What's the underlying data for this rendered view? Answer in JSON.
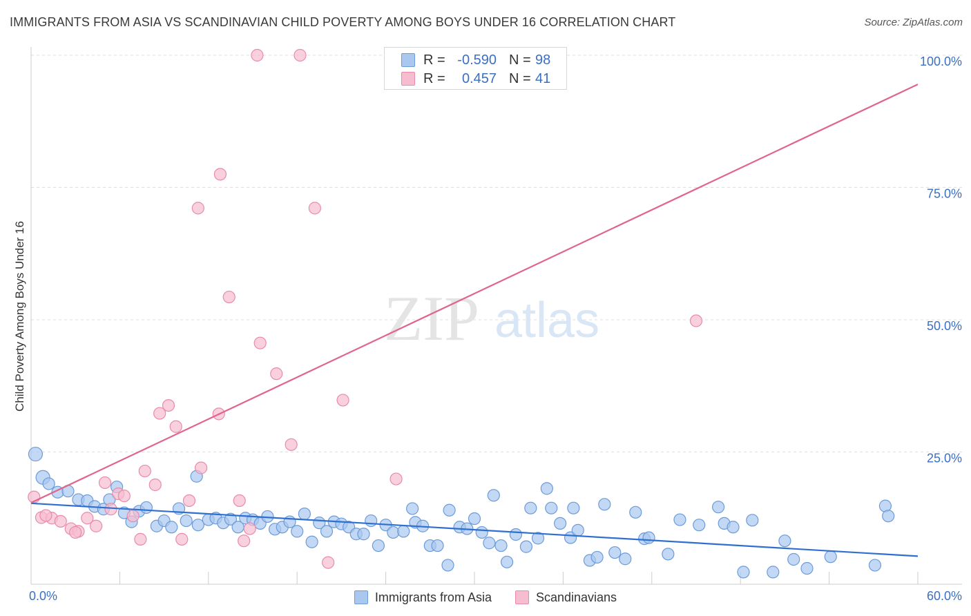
{
  "header": {
    "title": "IMMIGRANTS FROM ASIA VS SCANDINAVIAN CHILD POVERTY AMONG BOYS UNDER 16 CORRELATION CHART",
    "source": "Source: ZipAtlas.com"
  },
  "watermark": {
    "part1": "ZIP",
    "part2": "atlas"
  },
  "colors": {
    "asia_fill": "#aac8ef",
    "asia_stroke": "#6b9bd8",
    "asia_line": "#2f6fcf",
    "scand_fill": "#f6bcd0",
    "scand_stroke": "#e98aa9",
    "scand_line": "#e0648d",
    "axis_label": "#3a6fc4",
    "grid": "#dddddd"
  },
  "legend_top": {
    "asia": {
      "r_label": "R =",
      "r_value": "-0.590",
      "n_label": "N =",
      "n_value": "98"
    },
    "scand": {
      "r_label": "R =",
      "r_value": "0.457",
      "n_label": "N =",
      "n_value": "41"
    }
  },
  "legend_bottom": {
    "asia": "Immigrants from Asia",
    "scand": "Scandinavians"
  },
  "chart_data": {
    "type": "scatter",
    "title": "IMMIGRANTS FROM ASIA VS SCANDINAVIAN CHILD POVERTY AMONG BOYS UNDER 16 CORRELATION CHART",
    "xlabel": "",
    "ylabel": "Child Poverty Among Boys Under 16",
    "xlim": [
      0,
      60
    ],
    "ylim": [
      0,
      100
    ],
    "x_tick_labels": [
      "0.0%",
      "60.0%"
    ],
    "y_ticks": [
      25,
      50,
      75,
      100
    ],
    "y_tick_labels": [
      "25.0%",
      "50.0%",
      "75.0%",
      "100.0%"
    ],
    "grid": true,
    "legend_placement": "top-center",
    "series": [
      {
        "name": "Immigrants from Asia",
        "trend": {
          "x": [
            0,
            60
          ],
          "y": [
            15.3,
            5.3
          ]
        },
        "points": [
          [
            0.3,
            24.6
          ],
          [
            0.8,
            20.2
          ],
          [
            1.2,
            19.0
          ],
          [
            1.8,
            17.4
          ],
          [
            2.5,
            17.6
          ],
          [
            3.2,
            16.0
          ],
          [
            3.8,
            15.8
          ],
          [
            4.3,
            14.7
          ],
          [
            4.9,
            14.2
          ],
          [
            5.3,
            16.0
          ],
          [
            5.8,
            18.4
          ],
          [
            6.3,
            13.5
          ],
          [
            6.8,
            11.8
          ],
          [
            7.3,
            13.8
          ],
          [
            7.8,
            14.5
          ],
          [
            8.5,
            11.0
          ],
          [
            9.0,
            12.0
          ],
          [
            9.5,
            10.8
          ],
          [
            10.0,
            14.3
          ],
          [
            10.5,
            12.0
          ],
          [
            11.2,
            20.4
          ],
          [
            11.3,
            11.2
          ],
          [
            12.0,
            12.2
          ],
          [
            12.5,
            12.5
          ],
          [
            13.0,
            11.6
          ],
          [
            13.5,
            12.3
          ],
          [
            14.0,
            10.8
          ],
          [
            14.5,
            12.5
          ],
          [
            15.0,
            12.2
          ],
          [
            15.5,
            11.5
          ],
          [
            16.0,
            12.8
          ],
          [
            16.5,
            10.4
          ],
          [
            17.0,
            10.8
          ],
          [
            17.5,
            11.8
          ],
          [
            18.0,
            10.0
          ],
          [
            18.5,
            13.3
          ],
          [
            19.0,
            8.0
          ],
          [
            19.5,
            11.6
          ],
          [
            20.0,
            10.0
          ],
          [
            20.5,
            11.8
          ],
          [
            21.0,
            11.4
          ],
          [
            21.5,
            10.8
          ],
          [
            22.0,
            9.5
          ],
          [
            22.5,
            9.5
          ],
          [
            23.0,
            12.0
          ],
          [
            23.5,
            7.3
          ],
          [
            24.0,
            11.2
          ],
          [
            24.5,
            9.8
          ],
          [
            25.2,
            10.0
          ],
          [
            25.8,
            14.3
          ],
          [
            26.0,
            11.7
          ],
          [
            26.5,
            11.0
          ],
          [
            27.0,
            7.3
          ],
          [
            27.5,
            7.3
          ],
          [
            28.2,
            3.6
          ],
          [
            28.3,
            14.0
          ],
          [
            29.0,
            10.8
          ],
          [
            29.5,
            10.5
          ],
          [
            30.0,
            12.4
          ],
          [
            30.5,
            9.8
          ],
          [
            31.0,
            7.8
          ],
          [
            31.3,
            16.8
          ],
          [
            31.8,
            7.3
          ],
          [
            32.2,
            4.2
          ],
          [
            32.8,
            9.4
          ],
          [
            33.5,
            7.1
          ],
          [
            33.8,
            14.4
          ],
          [
            34.3,
            8.7
          ],
          [
            34.9,
            18.1
          ],
          [
            35.2,
            14.4
          ],
          [
            35.8,
            11.5
          ],
          [
            36.5,
            8.8
          ],
          [
            36.7,
            14.4
          ],
          [
            37.0,
            10.2
          ],
          [
            37.8,
            4.5
          ],
          [
            38.3,
            5.1
          ],
          [
            38.8,
            15.1
          ],
          [
            39.5,
            6.0
          ],
          [
            40.2,
            4.8
          ],
          [
            40.9,
            13.6
          ],
          [
            41.5,
            8.6
          ],
          [
            41.8,
            8.8
          ],
          [
            43.1,
            5.7
          ],
          [
            43.9,
            12.2
          ],
          [
            45.2,
            11.2
          ],
          [
            46.5,
            14.6
          ],
          [
            46.9,
            11.5
          ],
          [
            47.5,
            10.8
          ],
          [
            48.2,
            2.3
          ],
          [
            48.8,
            12.1
          ],
          [
            50.2,
            2.3
          ],
          [
            51.0,
            8.2
          ],
          [
            51.6,
            4.7
          ],
          [
            52.5,
            3.0
          ],
          [
            54.1,
            5.2
          ],
          [
            57.1,
            3.6
          ],
          [
            57.8,
            14.8
          ],
          [
            58.0,
            12.9
          ]
        ]
      },
      {
        "name": "Scandinavians",
        "trend": {
          "x": [
            0,
            60
          ],
          "y": [
            15.4,
            94.5
          ]
        },
        "points": [
          [
            0.2,
            16.5
          ],
          [
            0.7,
            12.6
          ],
          [
            1.4,
            12.5
          ],
          [
            2.0,
            11.9
          ],
          [
            2.7,
            10.5
          ],
          [
            3.2,
            10.0
          ],
          [
            3.8,
            12.5
          ],
          [
            4.4,
            11.0
          ],
          [
            5.0,
            19.2
          ],
          [
            5.4,
            14.2
          ],
          [
            5.9,
            17.1
          ],
          [
            6.3,
            16.7
          ],
          [
            6.9,
            12.9
          ],
          [
            7.4,
            8.5
          ],
          [
            7.7,
            21.4
          ],
          [
            8.4,
            18.8
          ],
          [
            8.7,
            32.3
          ],
          [
            9.3,
            33.8
          ],
          [
            9.8,
            29.8
          ],
          [
            10.2,
            8.5
          ],
          [
            10.7,
            15.8
          ],
          [
            11.3,
            71.1
          ],
          [
            11.5,
            22.0
          ],
          [
            12.7,
            32.2
          ],
          [
            12.8,
            77.5
          ],
          [
            13.4,
            54.3
          ],
          [
            14.1,
            15.8
          ],
          [
            14.4,
            8.2
          ],
          [
            14.8,
            10.5
          ],
          [
            15.3,
            100.0
          ],
          [
            15.5,
            45.6
          ],
          [
            16.6,
            39.8
          ],
          [
            17.6,
            26.4
          ],
          [
            18.2,
            100.0
          ],
          [
            19.2,
            71.1
          ],
          [
            20.1,
            4.1
          ],
          [
            21.1,
            34.8
          ],
          [
            24.7,
            19.9
          ],
          [
            45.0,
            49.8
          ],
          [
            1.0,
            13.0
          ],
          [
            3.0,
            9.8
          ]
        ]
      }
    ]
  }
}
